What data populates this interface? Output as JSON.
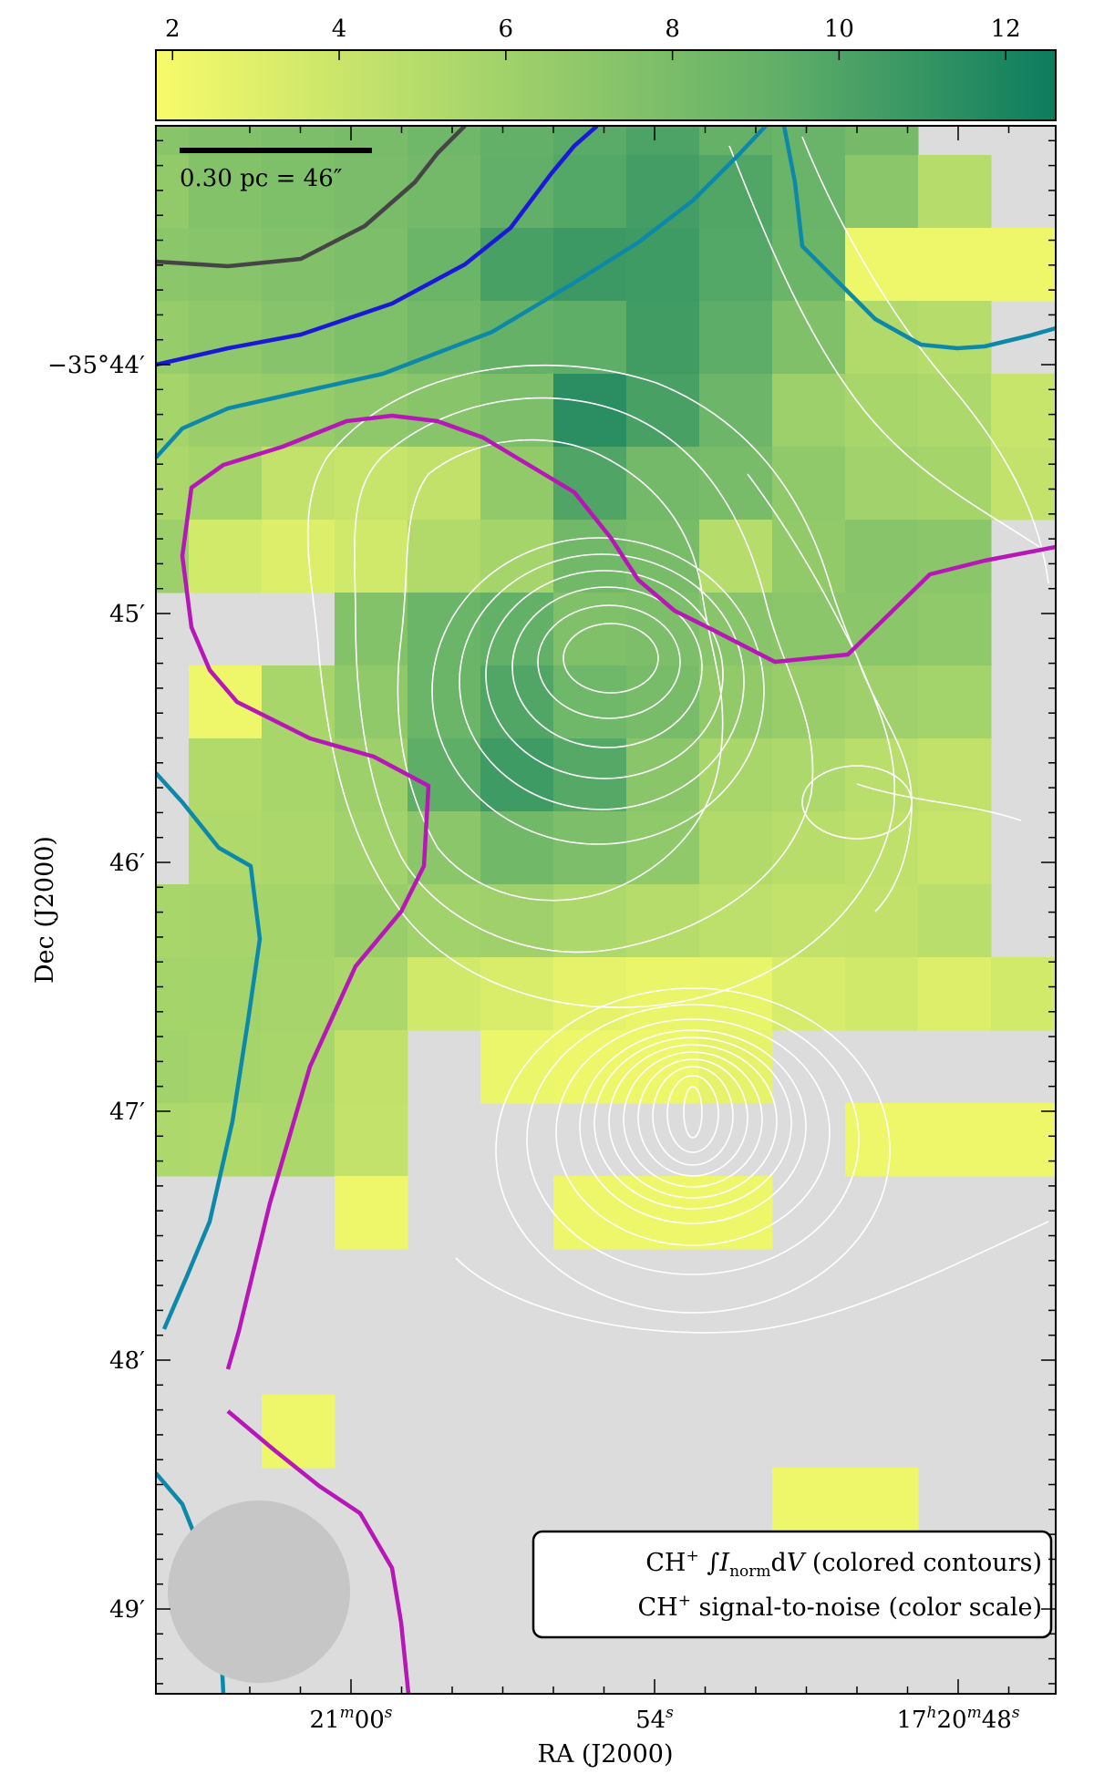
{
  "chart_data": {
    "type": "heatmap",
    "title": "",
    "xlabel": "RA (J2000)",
    "ylabel": "Dec (J2000)",
    "colorbar": {
      "ticks": [
        2,
        4,
        6,
        8,
        10,
        12
      ],
      "range": [
        1.8,
        12.6
      ],
      "colors": [
        "#f7fb6a",
        "#a9d66b",
        "#5fae68",
        "#0c7c5e"
      ]
    },
    "x_ticks": [
      {
        "ra_s": 60,
        "base": "21",
        "sup1": "m",
        "mid": "00",
        "sup2": "s"
      },
      {
        "ra_s": 54,
        "base": "54",
        "sup1": "s",
        "mid": "",
        "sup2": ""
      },
      {
        "ra_s": 48,
        "base": "17",
        "sup1": "h",
        "mid": "20",
        "sup2": "m",
        "tail": "48",
        "sup3": "s"
      }
    ],
    "y_ticks": [
      {
        "dec_arcmin": 44,
        "label": "−35°44′"
      },
      {
        "dec_arcmin": 45,
        "label": "45′"
      },
      {
        "dec_arcmin": 46,
        "label": "46′"
      },
      {
        "dec_arcmin": 47,
        "label": "47′"
      },
      {
        "dec_arcmin": 48,
        "label": "48′"
      },
      {
        "dec_arcmin": 49,
        "label": "49′"
      }
    ],
    "scalebar_label": "0.30 pc = 46″",
    "legend": {
      "line1_prefix": "CH",
      "line1_sup": "+",
      "line1_int": "∫",
      "line1_I": "I",
      "line1_sub": "norm",
      "line1_dV": "d",
      "line1_V": "V",
      "line1_suffix": " (colored contours)",
      "line2_prefix": "CH",
      "line2_sup": "+",
      "line2_suffix": " signal-to-noise (color scale)"
    },
    "grid_cols": [
      "61.0",
      "60.0",
      "59.0",
      "58.0",
      "57.0",
      "56.0",
      "55.0",
      "54.0",
      "53.0",
      "52.0",
      "51.0",
      "50.0",
      "49.0"
    ],
    "grid_rows": [
      "43.5",
      "43.8",
      "44.1",
      "44.4",
      "44.7",
      "45.0",
      "45.3",
      "45.6",
      "45.9",
      "46.2",
      "46.5",
      "46.8",
      "47.1",
      "47.4",
      "47.7",
      "48.0",
      "48.3",
      "48.6",
      "48.9",
      "49.2"
    ],
    "snr_grid": [
      [
        7.0,
        7.3,
        7.6,
        7.8,
        8.2,
        8.8,
        9.2,
        9.8,
        8.7,
        8.5,
        7.9,
        null,
        null
      ],
      [
        6.5,
        7.2,
        7.5,
        7.7,
        8.0,
        8.9,
        9.5,
        10.2,
        9.6,
        8.5,
        6.8,
        4.8,
        null
      ],
      [
        6.8,
        7.0,
        7.3,
        7.6,
        8.4,
        10.0,
        10.5,
        10.4,
        9.5,
        8.4,
        2.2,
        2.2,
        2.2
      ],
      [
        6.3,
        6.7,
        7.1,
        7.5,
        8.0,
        8.7,
        9.0,
        10.3,
        9.1,
        7.4,
        5.0,
        4.8,
        null
      ],
      [
        5.6,
        6.1,
        6.3,
        6.7,
        7.0,
        7.6,
        11.3,
        10.0,
        8.3,
        6.0,
        5.4,
        5.2,
        4.0
      ],
      [
        5.3,
        5.6,
        4.2,
        4.0,
        4.3,
        6.5,
        9.7,
        8.0,
        7.8,
        6.6,
        5.8,
        5.6,
        4.2
      ],
      [
        6.0,
        3.5,
        3.0,
        3.6,
        5.0,
        5.6,
        8.1,
        7.8,
        4.8,
        6.5,
        7.0,
        6.8,
        null
      ],
      [
        null,
        null,
        null,
        7.2,
        8.4,
        8.8,
        7.4,
        7.6,
        7.0,
        6.8,
        6.8,
        6.6,
        null
      ],
      [
        null,
        2.2,
        5.4,
        6.6,
        8.4,
        9.6,
        8.2,
        7.8,
        6.5,
        6.2,
        5.9,
        5.7,
        null
      ],
      [
        null,
        5.0,
        5.4,
        6.0,
        9.0,
        10.4,
        9.4,
        6.9,
        5.4,
        5.2,
        4.6,
        4.3,
        null
      ],
      [
        null,
        5.1,
        5.3,
        5.8,
        6.8,
        8.1,
        7.6,
        6.6,
        5.0,
        4.7,
        4.4,
        4.0,
        null
      ],
      [
        5.4,
        5.5,
        5.6,
        6.2,
        5.8,
        5.9,
        5.2,
        4.8,
        4.5,
        4.2,
        4.3,
        4.6,
        null
      ],
      [
        5.6,
        5.7,
        5.5,
        5.3,
        3.6,
        3.2,
        2.6,
        2.4,
        2.5,
        3.3,
        3.6,
        3.0,
        3.5
      ],
      [
        5.8,
        5.6,
        5.4,
        4.3,
        null,
        2.3,
        2.2,
        2.2,
        2.6,
        null,
        null,
        null,
        null
      ],
      [
        5.2,
        5.1,
        5.3,
        4.2,
        null,
        null,
        null,
        null,
        null,
        null,
        2.2,
        2.2,
        2.2
      ],
      [
        null,
        null,
        null,
        2.2,
        null,
        null,
        2.2,
        2.2,
        2.2,
        null,
        null,
        null,
        null
      ],
      [
        null,
        null,
        null,
        null,
        null,
        null,
        null,
        null,
        null,
        null,
        null,
        null,
        null
      ],
      [
        null,
        null,
        null,
        null,
        null,
        null,
        null,
        null,
        null,
        null,
        null,
        null,
        null
      ],
      [
        null,
        null,
        2.2,
        null,
        null,
        null,
        null,
        null,
        null,
        null,
        null,
        null,
        null
      ],
      [
        null,
        null,
        null,
        null,
        null,
        null,
        null,
        null,
        null,
        2.2,
        2.2,
        null,
        null
      ]
    ]
  }
}
